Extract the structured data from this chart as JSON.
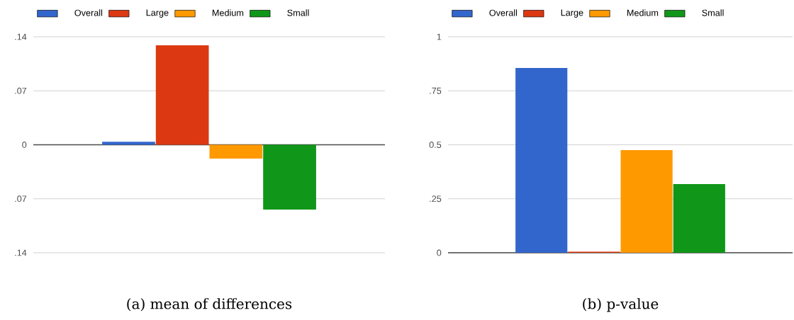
{
  "chart_data": [
    {
      "type": "bar",
      "categories": [
        null
      ],
      "ylim": [
        -0.14,
        0.14
      ],
      "yticks": [
        {
          "value": 0.14,
          "label": ".14"
        },
        {
          "value": 0.07,
          "label": ".07"
        },
        0,
        {
          "value": -0.07,
          "label": ".07"
        },
        {
          "value": -0.14,
          "label": ".14"
        }
      ],
      "grid": "y",
      "legend": "top",
      "series": [
        {
          "name": "Overall",
          "color": "#3366cc",
          "values": [
            0.004
          ]
        },
        {
          "name": "Large",
          "color": "#dc3912",
          "values": [
            0.129
          ]
        },
        {
          "name": "Medium",
          "color": "#ff9900",
          "values": [
            -0.018
          ]
        },
        {
          "name": "Small",
          "color": "#109618",
          "values": [
            -0.084
          ]
        }
      ],
      "annotations": [
        "(a) mean of differences"
      ]
    },
    {
      "type": "bar",
      "categories": [
        null
      ],
      "ylim": [
        0,
        1
      ],
      "yticks": [
        1,
        {
          "value": 0.75,
          "label": ".75"
        },
        0.5,
        {
          "value": 0.25,
          "label": ".25"
        },
        0
      ],
      "grid": "y",
      "legend": "top",
      "series": [
        {
          "name": "Overall",
          "color": "#3366cc",
          "values": [
            0.856
          ]
        },
        {
          "name": "Large",
          "color": "#dc3912",
          "values": [
            0.005
          ]
        },
        {
          "name": "Medium",
          "color": "#ff9900",
          "values": [
            0.475
          ]
        },
        {
          "name": "Small",
          "color": "#109618",
          "values": [
            0.318
          ]
        }
      ],
      "annotations": [
        "(b) p-value"
      ]
    }
  ]
}
